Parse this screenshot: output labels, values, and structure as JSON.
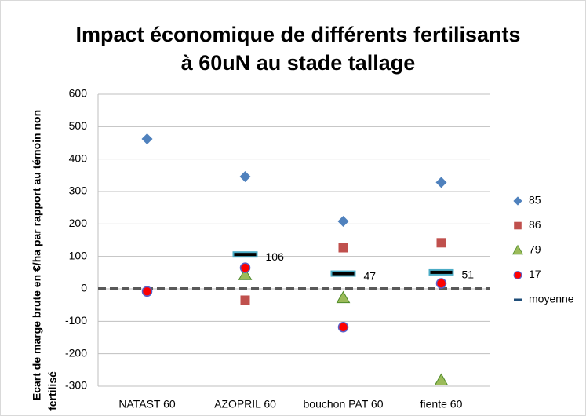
{
  "chart_data": {
    "type": "scatter",
    "title": [
      "Impact économique de différents fertilisants",
      "à 60uN au stade tallage"
    ],
    "ylabel": [
      "Ecart de marge brute en €/ha par rapport au témoin non",
      "fertilisé"
    ],
    "categories": [
      "NATAST 60",
      "AZOPRIL 60",
      "bouchon PAT 60",
      "fiente 60"
    ],
    "series": [
      {
        "name": "85",
        "color": "#4f81bd",
        "marker": "diamond",
        "values": [
          462,
          346,
          208,
          328
        ]
      },
      {
        "name": "86",
        "color": "#c0504d",
        "marker": "square",
        "values": [
          null,
          -35,
          127,
          142
        ]
      },
      {
        "name": "79",
        "color": "#9bbb59",
        "marker": "triangle",
        "values": [
          null,
          43,
          -28,
          -282
        ]
      },
      {
        "name": "17",
        "color": "#ff0000",
        "marker": "circle",
        "values": [
          -8,
          65,
          -118,
          17
        ]
      },
      {
        "name": "moyenne",
        "color": "#000000",
        "marker": "dash",
        "values": [
          null,
          106,
          47,
          51
        ],
        "data_labels": true
      }
    ],
    "reference_line": 0,
    "ylim": [
      -300,
      600
    ],
    "yticks": [
      -300,
      -200,
      -100,
      0,
      100,
      200,
      300,
      400,
      500,
      600
    ],
    "grid": true,
    "legend": "right"
  }
}
